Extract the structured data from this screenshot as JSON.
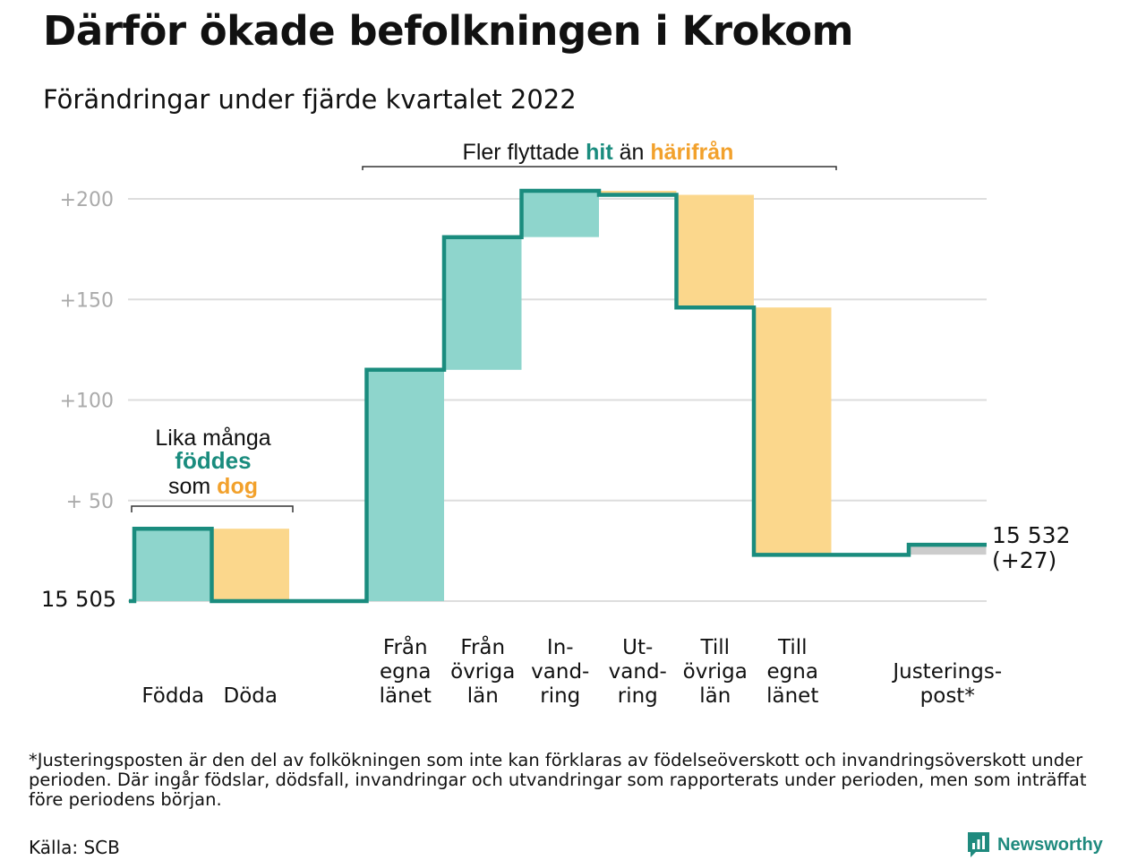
{
  "title": "Därför ökade befolkningen i Krokom",
  "subtitle": "Förändringar under fjärde kvartalet 2022",
  "footnote": "*Justeringsposten är den del av folkökningen som inte kan förklaras av födelseöverskott och invandringsöverskott under perioden. Där ingår födslar, dödsfall, invandringar och utvandringar som rapporterats under perioden, men som inträffat före periodens början.",
  "source": "Källa: SCB",
  "brand": "Newsworthy",
  "colors": {
    "increase": "#8ed5cc",
    "decrease": "#fbd78c",
    "line": "#1a8c7e",
    "adjust": "#cccccc",
    "hit": "#1a8c7e",
    "harifran": "#f2a12c",
    "grid": "#dddddd",
    "tick": "#aaaaaa"
  },
  "chart_data": {
    "type": "waterfall",
    "base_value": 15505,
    "base_label": "15 505",
    "end_label": "15 532",
    "end_change_label": "(+27)",
    "yticks": [
      {
        "value": 50,
        "label": "+ 50"
      },
      {
        "value": 100,
        "label": "+100"
      },
      {
        "value": 150,
        "label": "+150"
      },
      {
        "value": 200,
        "label": "+200"
      }
    ],
    "ylim": [
      0,
      200
    ],
    "steps": [
      {
        "label_lines": [
          "Födda"
        ],
        "change": 36,
        "kind": "increase"
      },
      {
        "label_lines": [
          "Döda"
        ],
        "change": -36,
        "kind": "decrease"
      },
      {
        "label_lines": [
          ""
        ],
        "change": 0,
        "kind": "gap"
      },
      {
        "label_lines": [
          "Från",
          "egna",
          "länet"
        ],
        "change": 115,
        "kind": "increase"
      },
      {
        "label_lines": [
          "Från",
          "övriga",
          "län"
        ],
        "change": 66,
        "kind": "increase"
      },
      {
        "label_lines": [
          "In-",
          "vand-",
          "ring"
        ],
        "change": 23,
        "kind": "increase"
      },
      {
        "label_lines": [
          "Ut-",
          "vand-",
          "ring"
        ],
        "change": -2,
        "kind": "decrease"
      },
      {
        "label_lines": [
          "Till",
          "övriga",
          "län"
        ],
        "change": -56,
        "kind": "decrease"
      },
      {
        "label_lines": [
          "Till",
          "egna",
          "länet"
        ],
        "change": -123,
        "kind": "decrease"
      },
      {
        "label_lines": [
          ""
        ],
        "change": 0,
        "kind": "gap"
      },
      {
        "label_lines": [
          "Justerings-",
          "post*"
        ],
        "change": 5,
        "kind": "adjust"
      }
    ],
    "annotation_births": {
      "line1": "Lika många",
      "word_fodd": "föddes",
      "word_som": "som",
      "word_dog": "dog"
    },
    "annotation_migration": {
      "prefix": "Fler flyttade",
      "word_hit": "hit",
      "middle": "än",
      "word_harifran": "härifrån"
    }
  }
}
